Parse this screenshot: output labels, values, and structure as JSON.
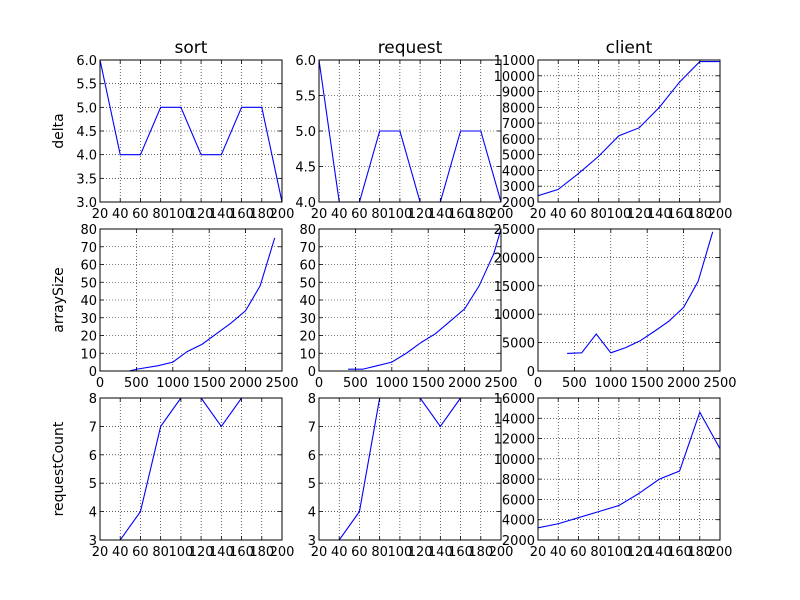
{
  "colors": {
    "line": "#0000ff",
    "grid": "#000000",
    "axes": "#000000",
    "background": "#ffffff"
  },
  "chart_data": [
    {
      "type": "line",
      "title": "sort",
      "xlabel": "",
      "ylabel": "delta",
      "grid": true,
      "xlim": [
        20,
        200
      ],
      "ylim": [
        3.0,
        6.0
      ],
      "xticks": [
        20,
        40,
        60,
        80,
        100,
        120,
        140,
        160,
        180,
        200
      ],
      "xtick_labels": [
        "20",
        "40",
        "60",
        "80",
        "100",
        "120",
        "140",
        "160",
        "180",
        "200"
      ],
      "yticks": [
        3.0,
        3.5,
        4.0,
        4.5,
        5.0,
        5.5,
        6.0
      ],
      "ytick_labels": [
        "3.0",
        "3.5",
        "4.0",
        "4.5",
        "5.0",
        "5.5",
        "6.0"
      ],
      "series": [
        {
          "x": [
            20,
            40,
            60,
            80,
            100,
            120,
            140,
            160,
            180,
            200
          ],
          "y": [
            6,
            4,
            4,
            5,
            5,
            4,
            4,
            5,
            5,
            3
          ]
        }
      ]
    },
    {
      "type": "line",
      "title": "request",
      "xlabel": "",
      "ylabel": "",
      "grid": true,
      "xlim": [
        20,
        200
      ],
      "ylim": [
        4.0,
        6.0
      ],
      "xticks": [
        20,
        40,
        60,
        80,
        100,
        120,
        140,
        160,
        180,
        200
      ],
      "xtick_labels": [
        "20",
        "40",
        "60",
        "80",
        "100",
        "120",
        "140",
        "160",
        "180",
        "200"
      ],
      "yticks": [
        4.0,
        4.5,
        5.0,
        5.5,
        6.0
      ],
      "ytick_labels": [
        "4.0",
        "4.5",
        "5.0",
        "5.5",
        "6.0"
      ],
      "series": [
        {
          "x": [
            20,
            40,
            60,
            80,
            100,
            120,
            140,
            160,
            180,
            200
          ],
          "y": [
            6,
            4,
            4,
            5,
            5,
            4,
            4,
            5,
            5,
            4
          ]
        }
      ]
    },
    {
      "type": "line",
      "title": "client",
      "xlabel": "",
      "ylabel": "",
      "grid": true,
      "xlim": [
        20,
        200
      ],
      "ylim": [
        2000,
        11000
      ],
      "xticks": [
        20,
        40,
        60,
        80,
        100,
        120,
        140,
        160,
        180,
        200
      ],
      "xtick_labels": [
        "20",
        "40",
        "60",
        "80",
        "100",
        "120",
        "140",
        "160",
        "180",
        "200"
      ],
      "yticks": [
        2000,
        3000,
        4000,
        5000,
        6000,
        7000,
        8000,
        9000,
        10000,
        11000
      ],
      "ytick_labels": [
        "2000",
        "3000",
        "4000",
        "5000",
        "6000",
        "7000",
        "8000",
        "9000",
        "10000",
        "11000"
      ],
      "series": [
        {
          "x": [
            20,
            40,
            60,
            80,
            100,
            120,
            140,
            160,
            180,
            200
          ],
          "y": [
            2400,
            2800,
            3800,
            4900,
            6200,
            6700,
            8000,
            9600,
            10900,
            10900
          ]
        }
      ]
    },
    {
      "type": "line",
      "title": "",
      "xlabel": "",
      "ylabel": "arraySize",
      "grid": true,
      "xlim": [
        0,
        2500
      ],
      "ylim": [
        0,
        80
      ],
      "xticks": [
        0,
        500,
        1000,
        1500,
        2000,
        2500
      ],
      "xtick_labels": [
        "0",
        "500",
        "1000",
        "1500",
        "2000",
        "2500"
      ],
      "yticks": [
        0,
        10,
        20,
        30,
        40,
        50,
        60,
        70,
        80
      ],
      "ytick_labels": [
        "0",
        "10",
        "20",
        "30",
        "40",
        "50",
        "60",
        "70",
        "80"
      ],
      "series": [
        {
          "x": [
            400,
            500,
            800,
            1000,
            1200,
            1400,
            1600,
            1800,
            2000,
            2200,
            2400
          ],
          "y": [
            0,
            1,
            3,
            5,
            11,
            15,
            21,
            27,
            34,
            48,
            75
          ]
        }
      ]
    },
    {
      "type": "line",
      "title": "",
      "xlabel": "",
      "ylabel": "",
      "grid": true,
      "xlim": [
        0,
        2500
      ],
      "ylim": [
        0,
        80
      ],
      "xticks": [
        0,
        500,
        1000,
        1500,
        2000,
        2500
      ],
      "xtick_labels": [
        "0",
        "500",
        "1000",
        "1500",
        "2000",
        "2500"
      ],
      "yticks": [
        0,
        10,
        20,
        30,
        40,
        50,
        60,
        70,
        80
      ],
      "ytick_labels": [
        "0",
        "10",
        "20",
        "30",
        "40",
        "50",
        "60",
        "70",
        "80"
      ],
      "series": [
        {
          "x": [
            400,
            600,
            800,
            1000,
            1200,
            1400,
            1600,
            1800,
            2000,
            2200,
            2400,
            2500
          ],
          "y": [
            1,
            1,
            3,
            5,
            10,
            16,
            21,
            28,
            35,
            48,
            66,
            80
          ]
        }
      ]
    },
    {
      "type": "line",
      "title": "",
      "xlabel": "",
      "ylabel": "",
      "grid": true,
      "xlim": [
        0,
        2500
      ],
      "ylim": [
        0,
        25000
      ],
      "xticks": [
        0,
        500,
        1000,
        1500,
        2000,
        2500
      ],
      "xtick_labels": [
        "0",
        "500",
        "1000",
        "1500",
        "2000",
        "2500"
      ],
      "yticks": [
        0,
        5000,
        10000,
        15000,
        20000,
        25000
      ],
      "ytick_labels": [
        "0",
        "5000",
        "10000",
        "15000",
        "20000",
        "25000"
      ],
      "series": [
        {
          "x": [
            400,
            600,
            800,
            1000,
            1200,
            1400,
            1600,
            1800,
            2000,
            2200,
            2400
          ],
          "y": [
            3100,
            3200,
            6500,
            3200,
            4100,
            5300,
            7000,
            8800,
            11200,
            15800,
            24500
          ]
        }
      ]
    },
    {
      "type": "line",
      "title": "",
      "xlabel": "",
      "ylabel": "requestCount",
      "grid": true,
      "xlim": [
        20,
        200
      ],
      "ylim": [
        3,
        8
      ],
      "xticks": [
        20,
        40,
        60,
        80,
        100,
        120,
        140,
        160,
        180,
        200
      ],
      "xtick_labels": [
        "20",
        "40",
        "60",
        "80",
        "100",
        "120",
        "140",
        "160",
        "180",
        "200"
      ],
      "yticks": [
        3,
        4,
        5,
        6,
        7,
        8
      ],
      "ytick_labels": [
        "3",
        "4",
        "5",
        "6",
        "7",
        "8"
      ],
      "series": [
        {
          "x": [
            20,
            40,
            60,
            80,
            100,
            120,
            140,
            160
          ],
          "y": [
            3,
            3,
            4,
            7,
            8,
            8,
            7,
            8
          ]
        }
      ]
    },
    {
      "type": "line",
      "title": "",
      "xlabel": "",
      "ylabel": "",
      "grid": true,
      "xlim": [
        20,
        200
      ],
      "ylim": [
        3,
        8
      ],
      "xticks": [
        20,
        40,
        60,
        80,
        100,
        120,
        140,
        160,
        180,
        200
      ],
      "xtick_labels": [
        "20",
        "40",
        "60",
        "80",
        "100",
        "120",
        "140",
        "160",
        "180",
        "200"
      ],
      "yticks": [
        3,
        4,
        5,
        6,
        7,
        8
      ],
      "ytick_labels": [
        "3",
        "4",
        "5",
        "6",
        "7",
        "8"
      ],
      "series": [
        {
          "x": [
            20,
            40,
            60,
            80,
            100,
            120,
            140,
            160
          ],
          "y": [
            3,
            3,
            4,
            8,
            9,
            8,
            7,
            8
          ]
        }
      ]
    },
    {
      "type": "line",
      "title": "",
      "xlabel": "",
      "ylabel": "",
      "grid": true,
      "xlim": [
        20,
        200
      ],
      "ylim": [
        2000,
        16000
      ],
      "xticks": [
        20,
        40,
        60,
        80,
        100,
        120,
        140,
        160,
        180,
        200
      ],
      "xtick_labels": [
        "20",
        "40",
        "60",
        "80",
        "100",
        "120",
        "140",
        "160",
        "180",
        "200"
      ],
      "yticks": [
        2000,
        4000,
        6000,
        8000,
        10000,
        12000,
        14000,
        16000
      ],
      "ytick_labels": [
        "2000",
        "4000",
        "6000",
        "8000",
        "10000",
        "12000",
        "14000",
        "16000"
      ],
      "series": [
        {
          "x": [
            20,
            40,
            60,
            80,
            100,
            120,
            140,
            160,
            180,
            200
          ],
          "y": [
            3200,
            3600,
            4200,
            4800,
            5400,
            6600,
            8000,
            8800,
            14600,
            11000
          ]
        }
      ]
    }
  ]
}
